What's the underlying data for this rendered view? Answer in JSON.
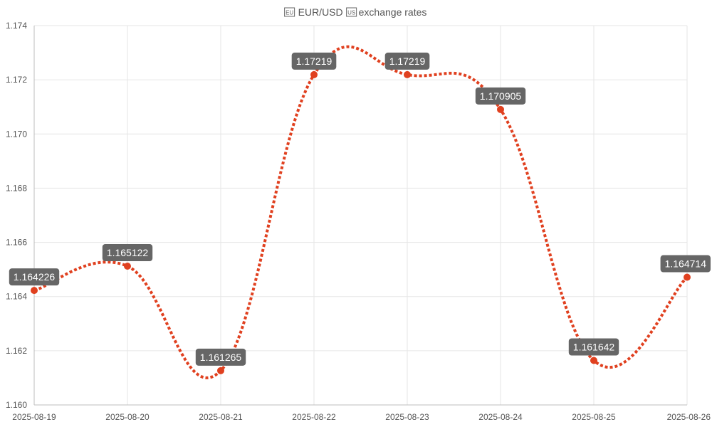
{
  "chart_data": {
    "type": "line",
    "title": "EUR/USD exchange rates",
    "title_icons": [
      "eu-flag-icon",
      "us-flag-icon"
    ],
    "xlabel": "",
    "ylabel": "",
    "x": [
      "2025-08-19",
      "2025-08-20",
      "2025-08-21",
      "2025-08-22",
      "2025-08-23",
      "2025-08-24",
      "2025-08-25",
      "2025-08-26"
    ],
    "series": [
      {
        "values": [
          1.164226,
          1.165122,
          1.161265,
          1.17219,
          1.17219,
          1.170905,
          1.161642,
          1.164714
        ],
        "labels": [
          "1.164226",
          "1.165122",
          "1.161265",
          "1.17219",
          "1.17219",
          "1.170905",
          "1.161642",
          "1.164714"
        ],
        "color": "#e0401f",
        "line_style": "dotted",
        "smooth": true
      }
    ],
    "ylim": [
      1.16,
      1.174
    ],
    "yticks": [
      1.16,
      1.162,
      1.164,
      1.166,
      1.168,
      1.17,
      1.172,
      1.174
    ],
    "ytick_labels": [
      "1.160",
      "1.162",
      "1.164",
      "1.166",
      "1.168",
      "1.170",
      "1.172",
      "1.174"
    ],
    "grid": true,
    "legend": "none",
    "label_bg_color": "#666666",
    "grid_color": "#e6e6e6"
  }
}
